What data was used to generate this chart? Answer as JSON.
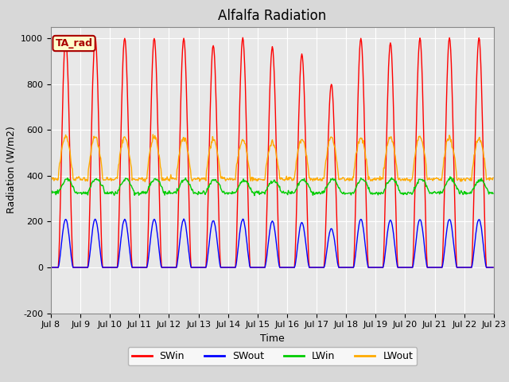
{
  "title": "Alfalfa Radiation",
  "ylabel": "Radiation (W/m2)",
  "xlabel": "Time",
  "ylim": [
    -200,
    1050
  ],
  "xlim_days": [
    8,
    23
  ],
  "xtick_labels": [
    "Jul 8",
    "Jul 9",
    "Jul 10",
    "Jul 11",
    "Jul 12",
    "Jul 13",
    "Jul 14",
    "Jul 15",
    "Jul 16",
    "Jul 17",
    "Jul 18",
    "Jul 19",
    "Jul 20",
    "Jul 21",
    "Jul 22",
    "Jul 23"
  ],
  "colors": {
    "SWin": "#ff0000",
    "SWout": "#0000ff",
    "LWin": "#00cc00",
    "LWout": "#ffaa00"
  },
  "annotation": "TA_rad",
  "annotation_color": "#aa0000",
  "annotation_bg": "#ffffcc",
  "background_color": "#e8e8e8",
  "grid_color": "#ffffff",
  "n_days": 15,
  "SWin_peak": 1000,
  "SWout_ratio": 0.21,
  "LWin_base": 325,
  "LWin_amplitude": 60,
  "LWout_base": 400,
  "LWout_amplitude": 170,
  "title_fontsize": 12,
  "legend_fontsize": 9,
  "tick_fontsize": 8,
  "axis_fontsize": 9,
  "cloud_factors_SW": [
    1.0,
    1.0,
    1.0,
    1.0,
    1.0,
    0.97,
    1.0,
    0.96,
    0.93,
    0.8,
    1.0,
    0.98,
    1.0,
    1.0,
    1.0
  ],
  "cloud_factors_LW": [
    1.0,
    1.0,
    1.0,
    1.0,
    0.97,
    0.94,
    0.9,
    0.85,
    0.93,
    0.97,
    0.97,
    0.98,
    1.0,
    0.97,
    0.95
  ]
}
